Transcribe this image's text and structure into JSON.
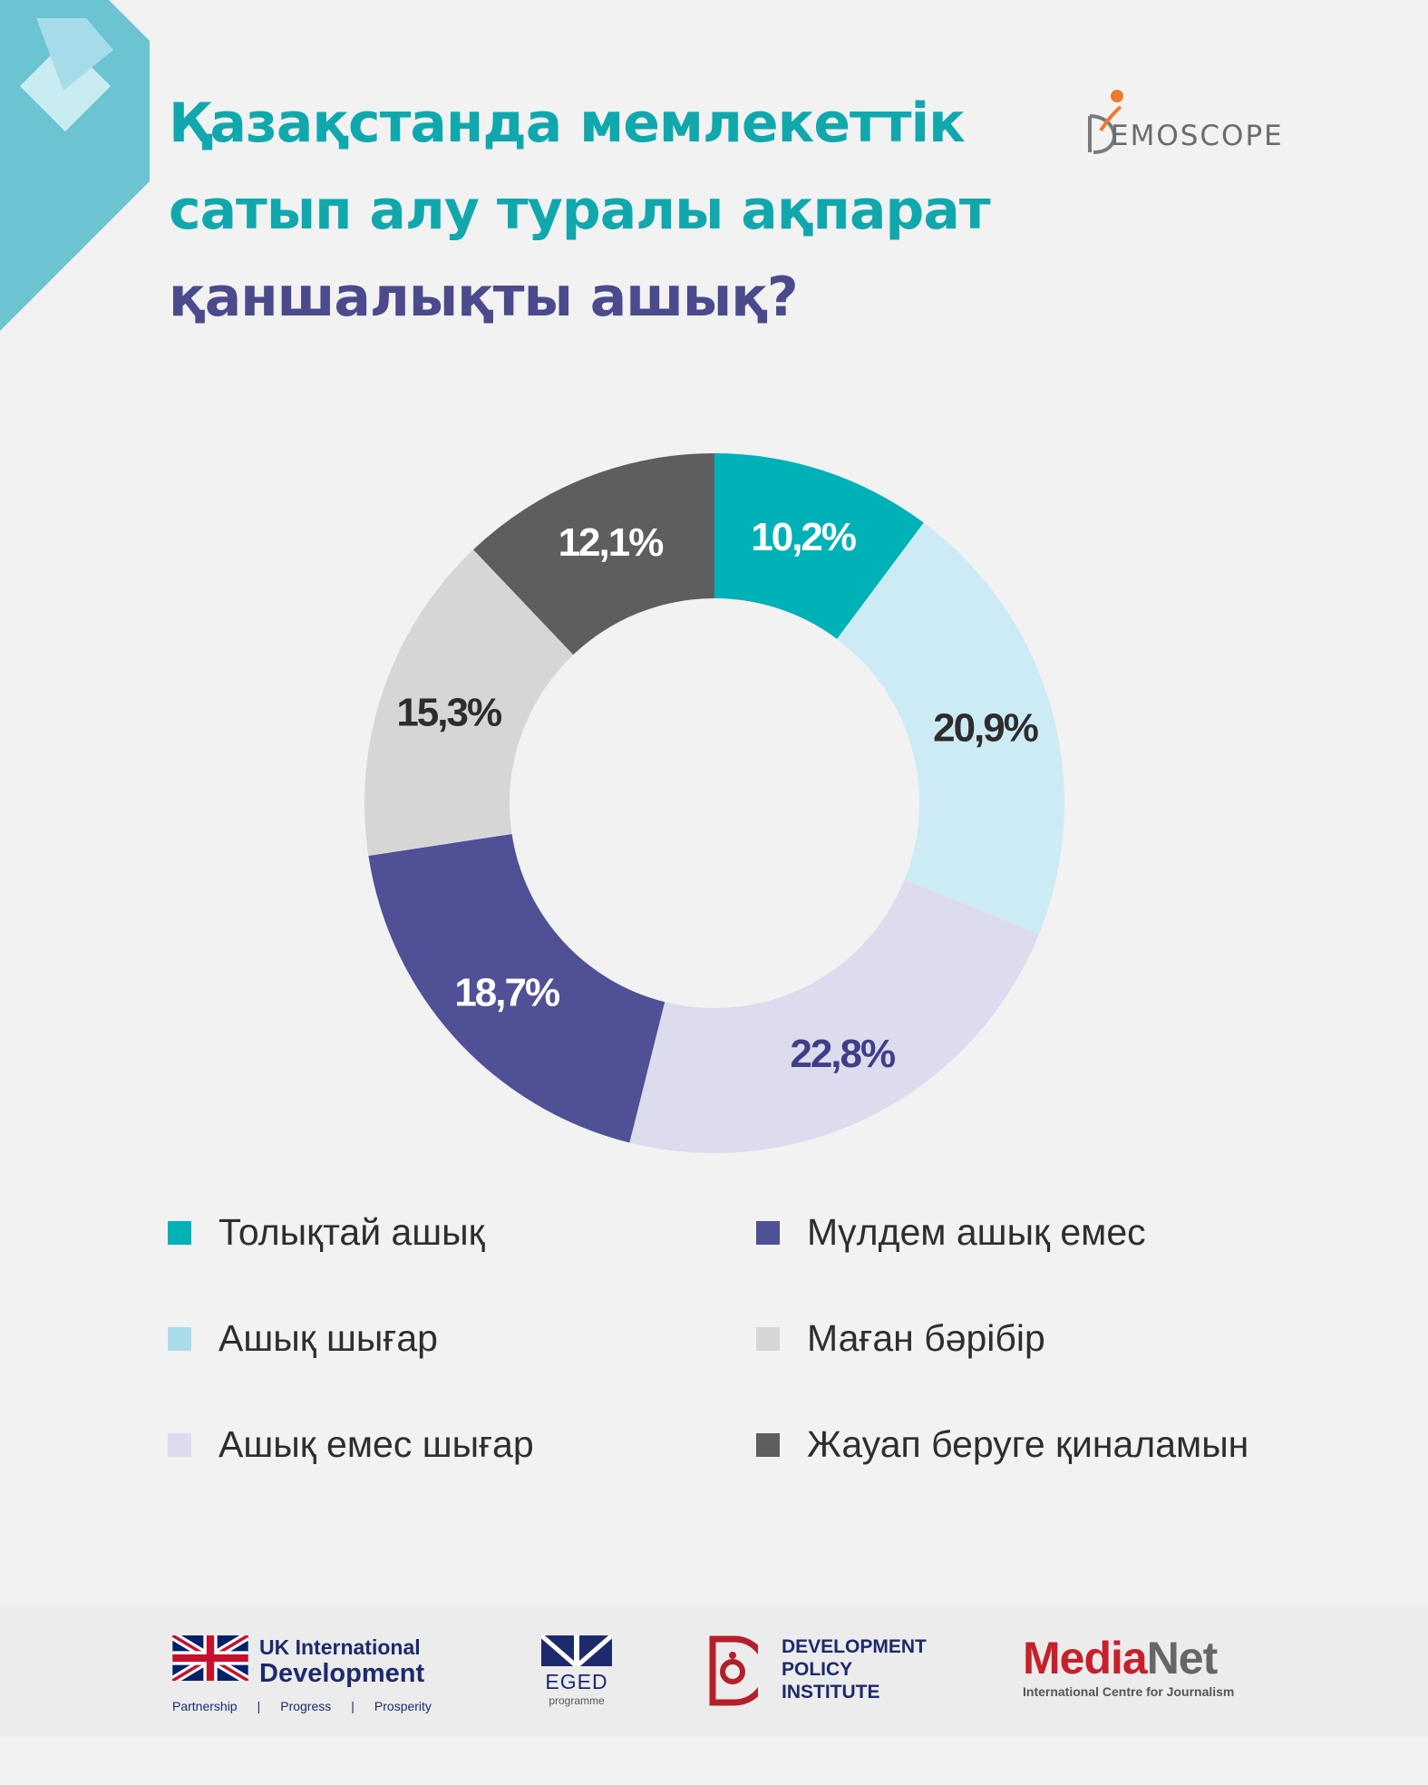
{
  "title": {
    "line1": "Қазақстанда мемлекеттік",
    "line2": "сатып алу туралы ақпарат",
    "line3": "қаншалықты ашық?"
  },
  "brand": {
    "name": "EMOSCOPE",
    "full_name": "DEMOSCOPE"
  },
  "colors": {
    "title_teal": "#11a8ad",
    "title_purple": "#4b4a8c",
    "corner_teal": "#6cc3d1",
    "corner_light": "#a6dcea"
  },
  "chart_data": {
    "type": "pie",
    "title": "Қазақстанда мемлекеттік сатып алу туралы ақпарат қаншалықты ашық?",
    "donut": true,
    "unit": "%",
    "slices": [
      {
        "label": "Толықтай ашық",
        "value": 10.2,
        "display": "10,2%",
        "color": "#00b1b8",
        "text_color": "#ffffff"
      },
      {
        "label": "Ашық шығар",
        "value": 20.9,
        "display": "20,9%",
        "color": "#cdebf4",
        "text_color": "#2d2d2d"
      },
      {
        "label": "Ашық емес шығар",
        "value": 22.8,
        "display": "22,8%",
        "color": "#dcdcee",
        "text_color": "#3f3f86"
      },
      {
        "label": "Мүлдем ашық емес",
        "value": 18.7,
        "display": "18,7%",
        "color": "#4f5096",
        "text_color": "#ffffff"
      },
      {
        "label": "Маған бәрібір",
        "value": 15.3,
        "display": "15,3%",
        "color": "#d6d6d6",
        "text_color": "#2d2d2d"
      },
      {
        "label": "Жауап беруге қиналамын",
        "value": 12.1,
        "display": "12,1%",
        "color": "#5e5e60",
        "text_color": "#ffffff"
      }
    ],
    "legend": [
      {
        "label": "Толықтай ашық",
        "color": "#00b1b8"
      },
      {
        "label": "Ашық шығар",
        "color": "#a9dcea"
      },
      {
        "label": "Ашық емес шығар",
        "color": "#dcdcee"
      },
      {
        "label": "Мүлдем ашық емес",
        "color": "#4f5096"
      },
      {
        "label": "Маған бәрібір",
        "color": "#d6d6d6"
      },
      {
        "label": "Жауап беруге қиналамын",
        "color": "#5e5e60"
      }
    ]
  },
  "footer": {
    "uk": {
      "line1": "UK International",
      "line2": "Development",
      "tagline": [
        "Partnership",
        "|",
        "Progress",
        "|",
        "Prosperity"
      ]
    },
    "eged": {
      "name": "EGED",
      "sub": "programme"
    },
    "dpi": {
      "lines": [
        "DEVELOPMENT",
        "POLICY",
        "INSTITUTE"
      ]
    },
    "medianet": {
      "media": "Media",
      "net": "Net",
      "sub": "International Centre for Journalism"
    }
  }
}
